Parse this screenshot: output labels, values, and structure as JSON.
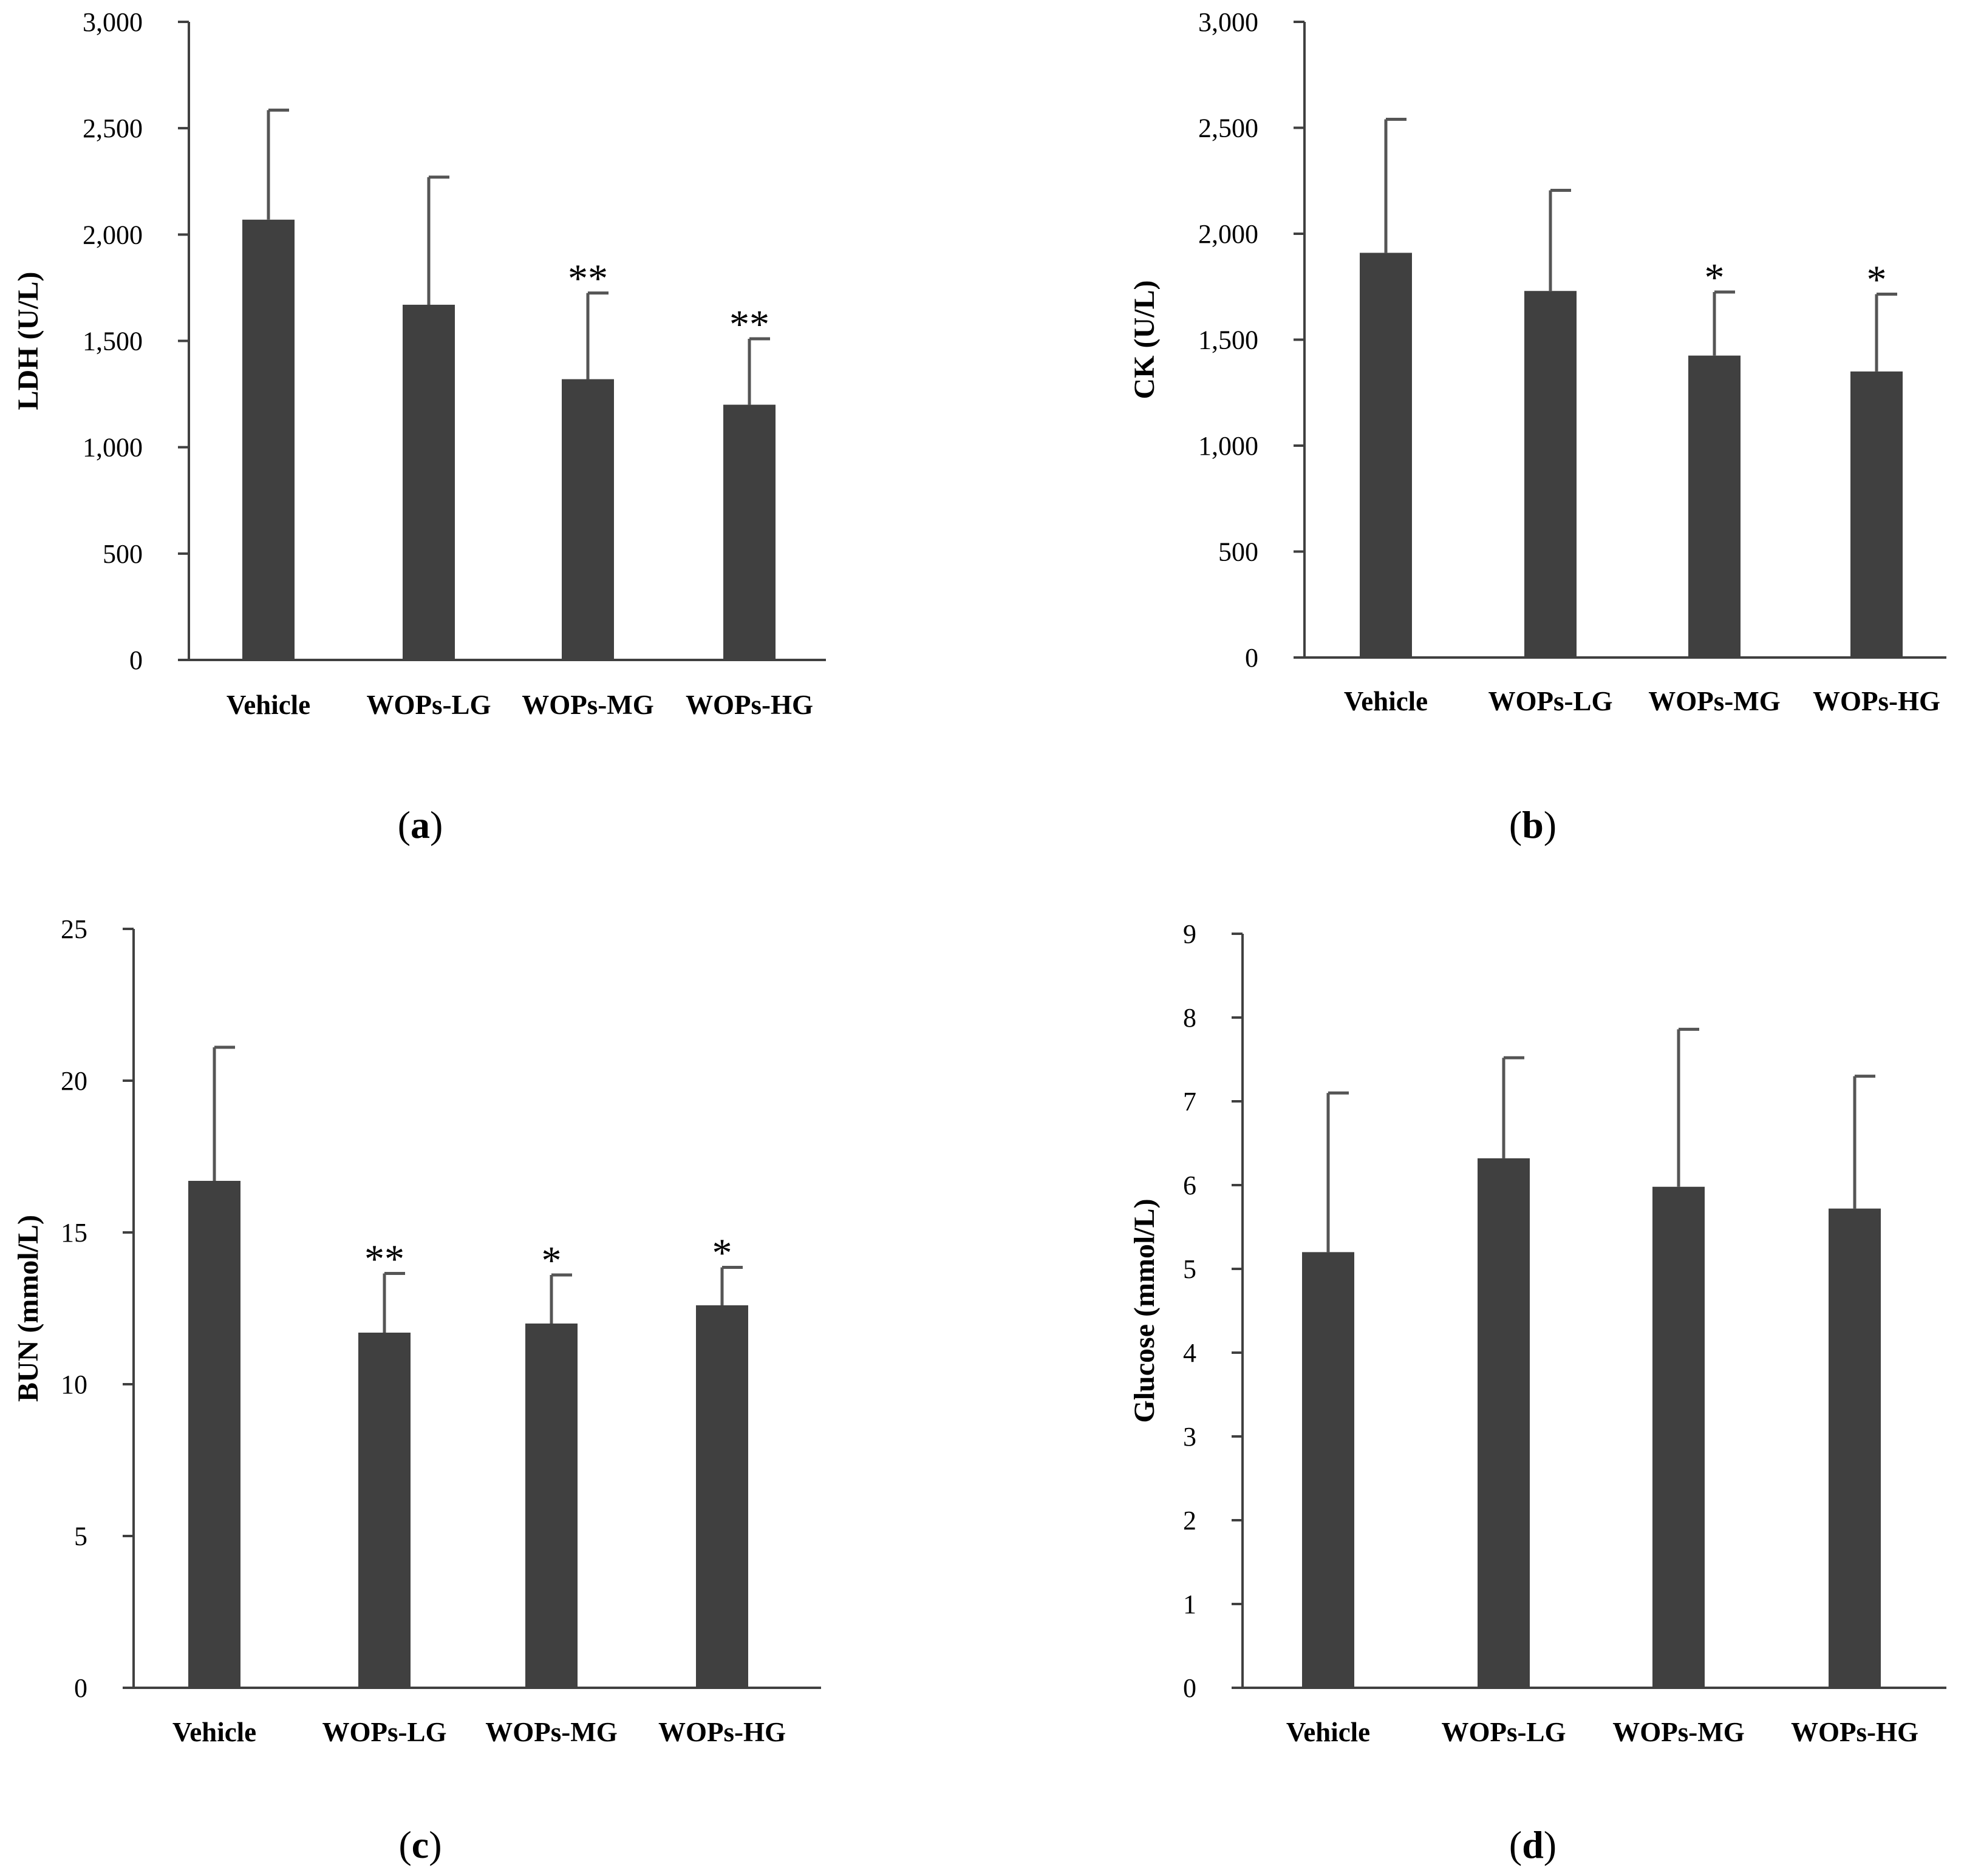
{
  "colors": {
    "bar": "#404040",
    "axis": "#404040",
    "error": "#555555"
  },
  "chart_data": [
    {
      "type": "bar",
      "panel": "a",
      "ylabel": "LDH (U/L)",
      "categories": [
        "Vehicle",
        "WOPs-LG",
        "WOPs-MG",
        "WOPs-HG"
      ],
      "values": [
        2070,
        1670,
        1320,
        1200
      ],
      "errors": [
        515,
        600,
        405,
        310
      ],
      "significance": [
        "",
        "",
        "**",
        "**"
      ],
      "ylim": [
        0,
        3000
      ],
      "yticks": [
        0,
        500,
        1000,
        1500,
        2000,
        2500,
        3000
      ],
      "ytick_labels": [
        "0",
        "500",
        "1,000",
        "1,500",
        "2,000",
        "2,500",
        "3,000"
      ]
    },
    {
      "type": "bar",
      "panel": "b",
      "ylabel": "CK (U/L)",
      "categories": [
        "Vehicle",
        "WOPs-LG",
        "WOPs-MG",
        "WOPs-HG"
      ],
      "values": [
        1910,
        1730,
        1425,
        1350
      ],
      "errors": [
        630,
        475,
        300,
        365
      ],
      "significance": [
        "",
        "",
        "*",
        "*"
      ],
      "ylim": [
        0,
        3000
      ],
      "yticks": [
        0,
        500,
        1000,
        1500,
        2000,
        2500,
        3000
      ],
      "ytick_labels": [
        "0",
        "500",
        "1,000",
        "1,500",
        "2,000",
        "2,500",
        "3,000"
      ]
    },
    {
      "type": "bar",
      "panel": "c",
      "ylabel": "BUN (mmol/L)",
      "categories": [
        "Vehicle",
        "WOPs-LG",
        "WOPs-MG",
        "WOPs-HG"
      ],
      "values": [
        16.7,
        11.7,
        12.0,
        12.6
      ],
      "errors": [
        4.4,
        1.95,
        1.6,
        1.25
      ],
      "significance": [
        "",
        "**",
        "*",
        "*"
      ],
      "ylim": [
        0,
        25
      ],
      "yticks": [
        0,
        5,
        10,
        15,
        20,
        25
      ],
      "ytick_labels": [
        "0",
        "5",
        "10",
        "15",
        "20",
        "25"
      ]
    },
    {
      "type": "bar",
      "panel": "d",
      "ylabel": "Glucose  (mmol/L)",
      "categories": [
        "Vehicle",
        "WOPs-LG",
        "WOPs-MG",
        "WOPs-HG"
      ],
      "values": [
        5.2,
        6.32,
        5.98,
        5.72
      ],
      "errors": [
        1.9,
        1.2,
        1.88,
        1.58
      ],
      "significance": [
        "",
        "",
        "",
        ""
      ],
      "ylim": [
        0,
        9
      ],
      "yticks": [
        0,
        1,
        2,
        3,
        4,
        5,
        6,
        7,
        8,
        9
      ],
      "ytick_labels": [
        "0",
        "1",
        "2",
        "3",
        "4",
        "5",
        "6",
        "7",
        "8",
        "9"
      ]
    }
  ],
  "panel_labels": [
    "a",
    "b",
    "c",
    "d"
  ]
}
